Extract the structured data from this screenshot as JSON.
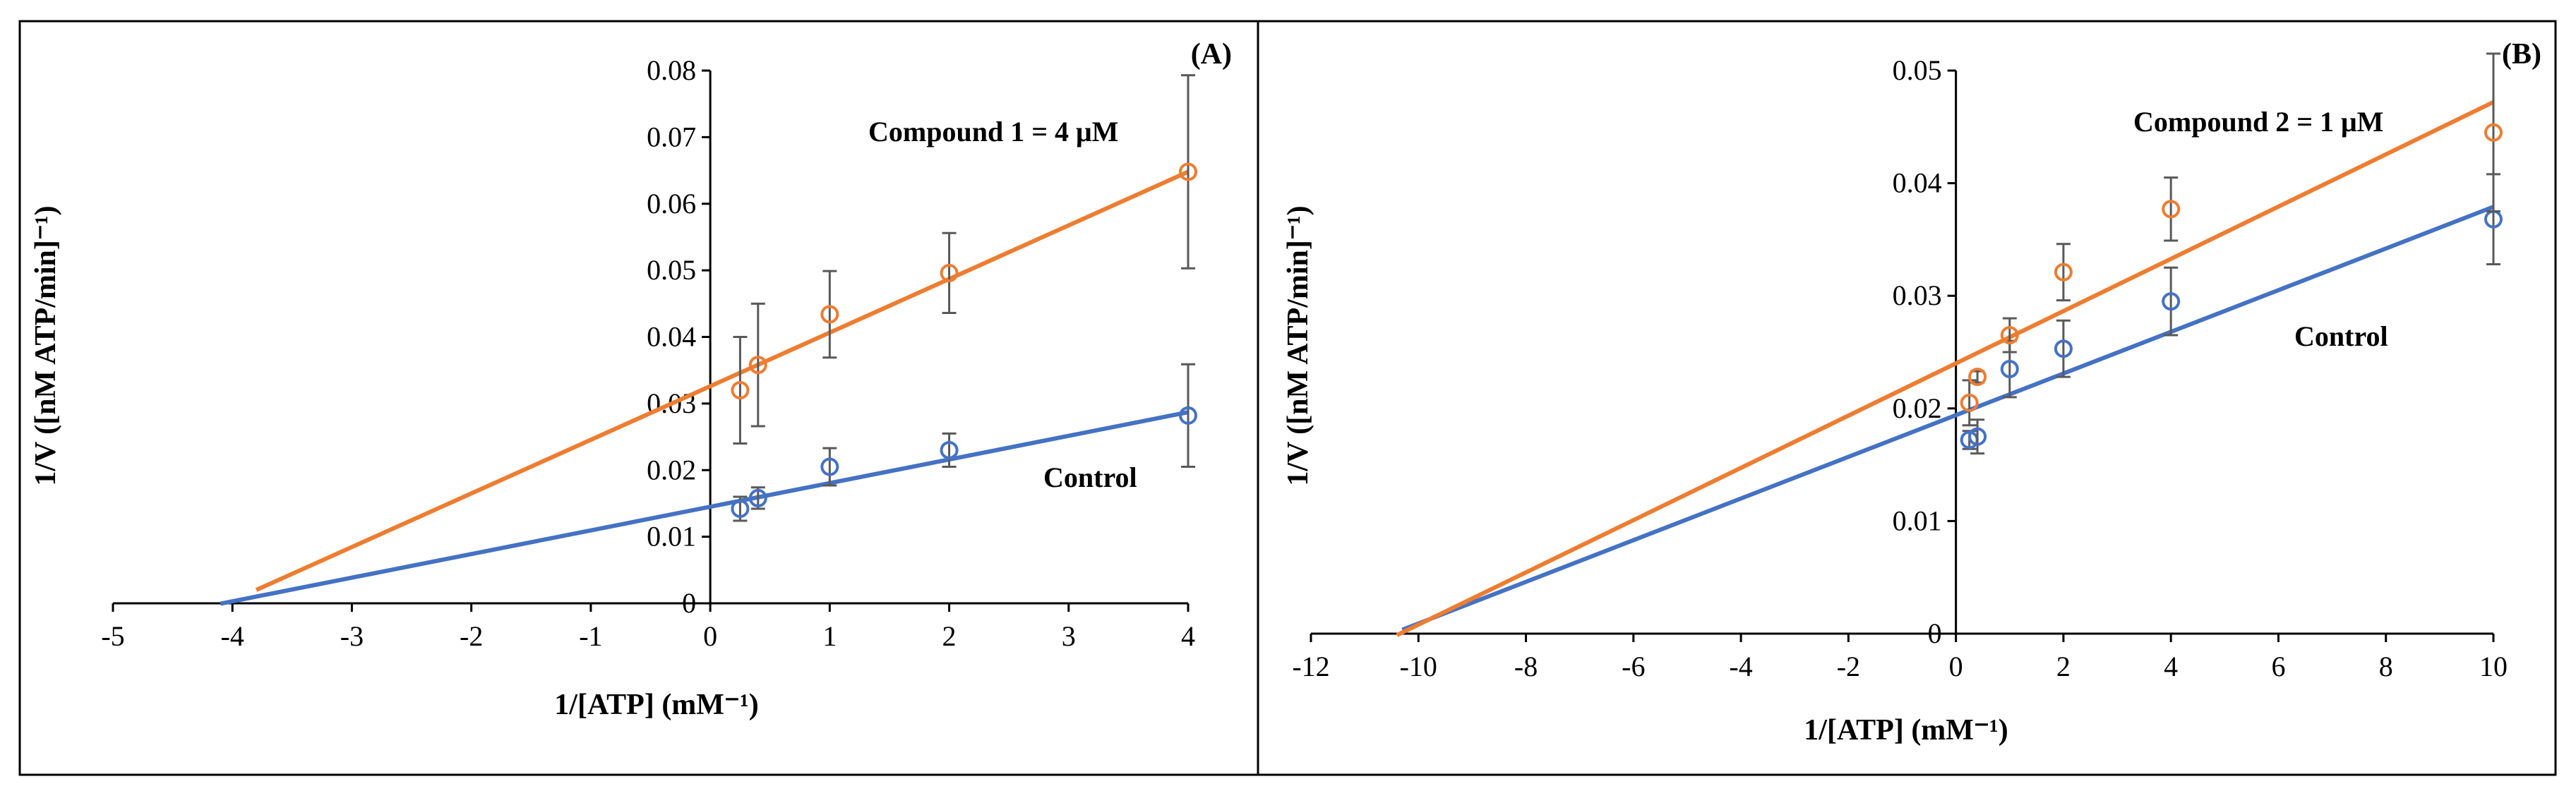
{
  "colors": {
    "control": "#4472C4",
    "compound": "#ED7D31",
    "errorbar": "#595959",
    "axis": "#000000"
  },
  "chart_data": [
    {
      "type": "scatter",
      "panel_label": "(A)",
      "xlabel": "1/[ATP] (mM⁻¹)",
      "ylabel": "1/V ([nM ATP/min]⁻¹)",
      "xlim": [
        -5,
        4
      ],
      "ylim": [
        0,
        0.08
      ],
      "xticks": [
        -5,
        -4,
        -3,
        -2,
        -1,
        0,
        1,
        2,
        3,
        4
      ],
      "yticks": [
        0,
        0.01,
        0.02,
        0.03,
        0.04,
        0.05,
        0.06,
        0.07,
        0.08
      ],
      "ytick_labels": [
        "0",
        "0.01",
        "0.02",
        "0.03",
        "0.04",
        "0.05",
        "0.06",
        "0.07",
        "0.08"
      ],
      "grid": false,
      "series": [
        {
          "name": "Control",
          "label_text": "Control",
          "color_key": "control",
          "x": [
            0.25,
            0.4,
            1,
            2,
            4
          ],
          "y": [
            0.0142,
            0.0158,
            0.0205,
            0.023,
            0.0282
          ],
          "err": [
            0.0018,
            0.0016,
            0.0028,
            0.0025,
            0.0077
          ],
          "fit": {
            "slope": 0.00355,
            "intercept": 0.0145,
            "x_from": -4.1,
            "x_to": 4
          }
        },
        {
          "name": "Compound 1 = 4 μM",
          "label_text": "Compound 1 = 4 μM",
          "color_key": "compound",
          "x": [
            0.25,
            0.4,
            1,
            2,
            4
          ],
          "y": [
            0.032,
            0.0358,
            0.0434,
            0.0496,
            0.0648
          ],
          "err": [
            0.008,
            0.0092,
            0.0065,
            0.006,
            0.0145
          ],
          "fit": {
            "slope": 0.00805,
            "intercept": 0.0326,
            "x_from": -3.8,
            "x_to": 4
          }
        }
      ]
    },
    {
      "type": "scatter",
      "panel_label": "(B)",
      "xlabel": "1/[ATP] (mM⁻¹)",
      "ylabel": "1/V ([nM ATP/min]⁻¹)",
      "xlim": [
        -12,
        10
      ],
      "ylim": [
        0,
        0.05
      ],
      "xticks": [
        -12,
        -10,
        -8,
        -6,
        -4,
        -2,
        0,
        2,
        4,
        6,
        8,
        10
      ],
      "yticks": [
        0,
        0.01,
        0.02,
        0.03,
        0.04,
        0.05
      ],
      "ytick_labels": [
        "0",
        "0.01",
        "0.02",
        "0.03",
        "0.04",
        "0.05"
      ],
      "grid": false,
      "series": [
        {
          "name": "Control",
          "label_text": "Control",
          "color_key": "control",
          "x": [
            0.25,
            0.4,
            1,
            2,
            4,
            10
          ],
          "y": [
            0.0172,
            0.0175,
            0.0235,
            0.0253,
            0.0295,
            0.0368
          ],
          "err": [
            0.0008,
            0.0015,
            0.0025,
            0.0025,
            0.003,
            0.004
          ],
          "fit": {
            "slope": 0.00185,
            "intercept": 0.0194,
            "x_from": -10.3,
            "x_to": 10
          }
        },
        {
          "name": "Compound 2 = 1 μM",
          "label_text": "Compound 2 = 1 μM",
          "color_key": "compound",
          "x": [
            0.25,
            0.4,
            1,
            2,
            4,
            10
          ],
          "y": [
            0.0205,
            0.0228,
            0.0265,
            0.0321,
            0.0377,
            0.0445
          ],
          "err": [
            0.002,
            0.0005,
            0.0015,
            0.0025,
            0.0028,
            0.007
          ],
          "fit": {
            "slope": 0.00232,
            "intercept": 0.024,
            "x_from": -10.4,
            "x_to": 10
          }
        }
      ]
    }
  ]
}
